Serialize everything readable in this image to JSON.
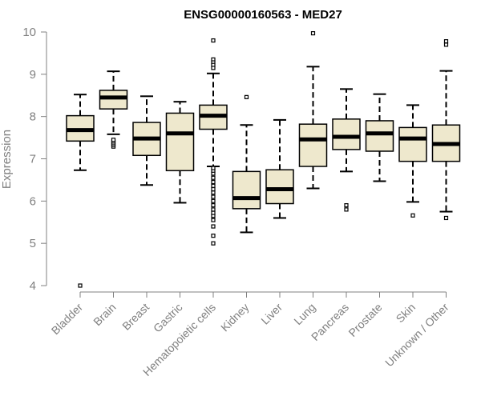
{
  "chart_data": {
    "type": "boxplot",
    "title": "ENSG00000160563 - MED27",
    "xlabel": "",
    "ylabel": "Expression",
    "ylim": [
      4,
      10
    ],
    "yticks": [
      "4",
      "5",
      "6",
      "7",
      "8",
      "9",
      "10"
    ],
    "box_fill": "#EEE8CD",
    "box_stroke": "#000000",
    "categories": [
      "Bladder",
      "Brain",
      "Breast",
      "Gastric",
      "Hematopoietic cells",
      "Kidney",
      "Liver",
      "Lung",
      "Pancreas",
      "Prostate",
      "Skin",
      "Unknown / Other"
    ],
    "boxes": [
      {
        "name": "Bladder",
        "whisker_low": 6.73,
        "q1": 7.42,
        "median": 7.68,
        "q3": 8.02,
        "whisker_high": 8.52,
        "outliers": [
          4.0
        ]
      },
      {
        "name": "Brain",
        "whisker_low": 7.58,
        "q1": 8.18,
        "median": 8.45,
        "q3": 8.62,
        "whisker_high": 9.07,
        "outliers": [
          7.29,
          7.33,
          7.37,
          7.41,
          7.45
        ]
      },
      {
        "name": "Breast",
        "whisker_low": 6.38,
        "q1": 7.08,
        "median": 7.48,
        "q3": 7.86,
        "whisker_high": 8.48,
        "outliers": []
      },
      {
        "name": "Gastric",
        "whisker_low": 5.96,
        "q1": 6.72,
        "median": 7.6,
        "q3": 8.08,
        "whisker_high": 8.35,
        "outliers": []
      },
      {
        "name": "Hematopoietic cells",
        "whisker_low": 6.82,
        "q1": 7.7,
        "median": 8.02,
        "q3": 8.27,
        "whisker_high": 9.02,
        "outliers": [
          9.8,
          9.35,
          9.28,
          9.22,
          9.15,
          5.0,
          5.18,
          5.4,
          5.55,
          5.65,
          5.72,
          5.8,
          5.9,
          6.0,
          6.1,
          6.2,
          6.28,
          6.36,
          6.45,
          6.55,
          6.65,
          6.72,
          6.78
        ]
      },
      {
        "name": "Kidney",
        "whisker_low": 5.26,
        "q1": 5.82,
        "median": 6.07,
        "q3": 6.7,
        "whisker_high": 7.8,
        "outliers": [
          8.46
        ]
      },
      {
        "name": "Liver",
        "whisker_low": 5.6,
        "q1": 5.94,
        "median": 6.28,
        "q3": 6.74,
        "whisker_high": 7.92,
        "outliers": []
      },
      {
        "name": "Lung",
        "whisker_low": 6.3,
        "q1": 6.82,
        "median": 7.46,
        "q3": 7.82,
        "whisker_high": 9.18,
        "outliers": [
          9.97
        ]
      },
      {
        "name": "Pancreas",
        "whisker_low": 6.7,
        "q1": 7.22,
        "median": 7.52,
        "q3": 7.94,
        "whisker_high": 8.65,
        "outliers": [
          5.8,
          5.9
        ]
      },
      {
        "name": "Prostate",
        "whisker_low": 6.47,
        "q1": 7.18,
        "median": 7.6,
        "q3": 7.9,
        "whisker_high": 8.53,
        "outliers": []
      },
      {
        "name": "Skin",
        "whisker_low": 5.98,
        "q1": 6.94,
        "median": 7.48,
        "q3": 7.74,
        "whisker_high": 8.27,
        "outliers": [
          5.66
        ]
      },
      {
        "name": "Unknown / Other",
        "whisker_low": 5.75,
        "q1": 6.94,
        "median": 7.35,
        "q3": 7.8,
        "whisker_high": 9.08,
        "outliers": [
          5.6,
          9.7,
          9.78
        ]
      }
    ]
  }
}
